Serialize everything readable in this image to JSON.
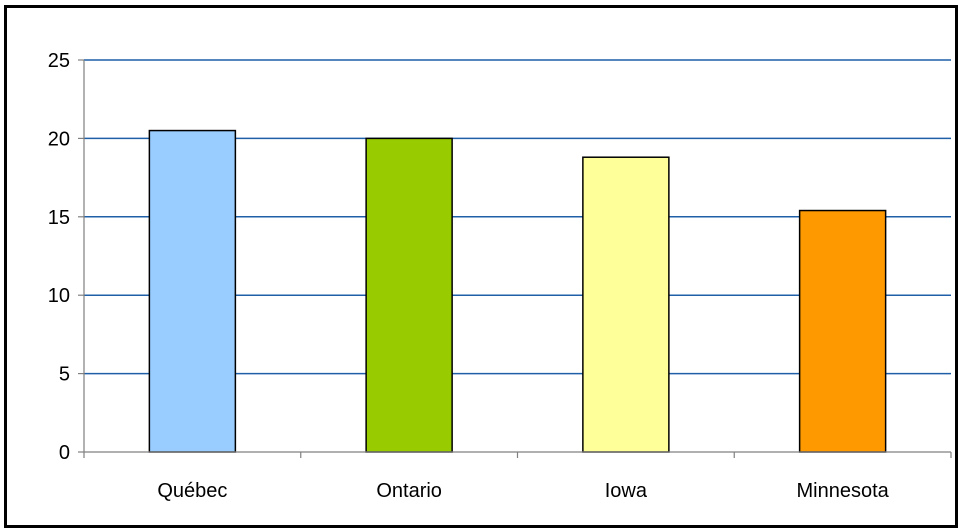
{
  "chart_data": {
    "type": "bar",
    "title": "",
    "xlabel": "",
    "ylabel": "",
    "categories": [
      "Québec",
      "Ontario",
      "Iowa",
      "Minnesota"
    ],
    "values": [
      20.5,
      20.0,
      18.8,
      15.4
    ],
    "colors": [
      "#99ccff",
      "#99cc00",
      "#ffff99",
      "#ff9900"
    ],
    "gridline_color": "#1f5fa8",
    "ylim": [
      0,
      25
    ],
    "yticks": [
      0,
      5,
      10,
      15,
      20,
      25
    ],
    "grid": true,
    "legend": "none"
  }
}
